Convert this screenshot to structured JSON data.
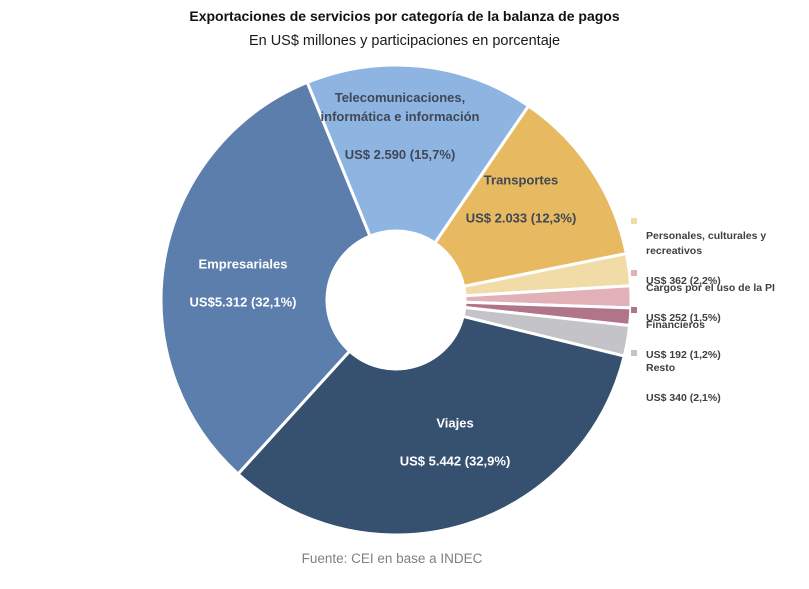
{
  "header": {
    "title": "Exportaciones de servicios por categoría de la balanza de pagos",
    "subtitle": "En US$ millones y participaciones en porcentaje"
  },
  "footer": {
    "source": "Fuente: CEI en base a INDEC"
  },
  "chart_data": {
    "type": "pie",
    "donut": true,
    "title": "Exportaciones de servicios por categoría de la balanza de pagos",
    "subtitle": "En US$ millones y participaciones en porcentaje",
    "units": "US$ millones",
    "direction": "clockwise",
    "start_angle_deg": -22.2,
    "legend_position": "right",
    "slices": [
      {
        "key": "telecomunicaciones",
        "name": "Telecomunicaciones,\ninformática e información",
        "value": 2590,
        "pct": 15.7,
        "label": "US$ 2.590 (15,7%)",
        "color": "#8EB4E2",
        "label_placement": "inside"
      },
      {
        "key": "transportes",
        "name": "Transportes",
        "value": 2033,
        "pct": 12.3,
        "label": "US$ 2.033 (12,3%)",
        "color": "#E7B960",
        "label_placement": "inside"
      },
      {
        "key": "personales-culturales-recreativos",
        "name": "Personales, culturales y\nrecreativos",
        "value": 362,
        "pct": 2.2,
        "label": "US$ 362 (2,2%)",
        "color": "#F1DCA7",
        "label_placement": "legend"
      },
      {
        "key": "cargos-uso-pi",
        "name": "Cargos por el uso de la PI",
        "value": 252,
        "pct": 1.5,
        "label": "US$ 252 (1,5%)",
        "color": "#E2B0B7",
        "label_placement": "legend"
      },
      {
        "key": "financieros",
        "name": "Financieros",
        "value": 192,
        "pct": 1.2,
        "label": "US$ 192 (1,2%)",
        "color": "#B1758A",
        "label_placement": "legend"
      },
      {
        "key": "resto",
        "name": "Resto",
        "value": 340,
        "pct": 2.1,
        "label": "US$ 340 (2,1%)",
        "color": "#C4C3C7",
        "label_placement": "legend"
      },
      {
        "key": "viajes",
        "name": "Viajes",
        "value": 5442,
        "pct": 32.9,
        "label": "US$ 5.442 (32,9%)",
        "color": "#36506F",
        "label_placement": "inside"
      },
      {
        "key": "empresariales",
        "name": "Empresariales",
        "value": 5312,
        "pct": 32.1,
        "label": "US$5.312 (32,1%)",
        "color": "#5B7EAD",
        "label_placement": "inside"
      }
    ]
  }
}
